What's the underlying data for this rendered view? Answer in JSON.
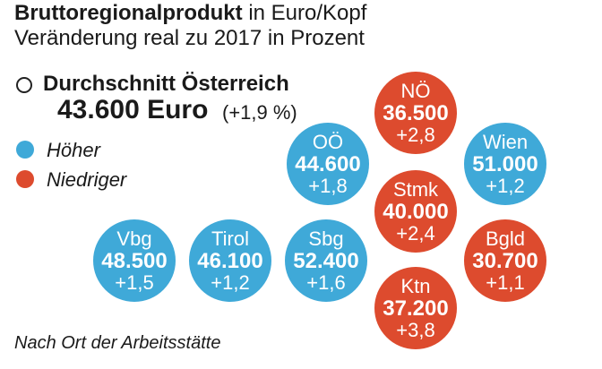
{
  "title": {
    "bold": "Bruttoregionalprodukt",
    "rest": " in Euro/Kopf",
    "subtitle": "Veränderung real zu 2017 in Prozent"
  },
  "average": {
    "label": "Durchschnitt Österreich",
    "value": "43.600 Euro",
    "change": "(+1,9 %)"
  },
  "legend": {
    "higher": "Höher",
    "lower": "Niedriger"
  },
  "colors": {
    "higher": "#3fa9d8",
    "lower": "#dd4b2e"
  },
  "footnote": "Nach Ort der Arbeitsstätte",
  "chart_data": {
    "type": "bubble-grid",
    "series": [
      {
        "region": "Vbg",
        "value": "48.500",
        "change": "+1,5",
        "category": "higher"
      },
      {
        "region": "Tirol",
        "value": "46.100",
        "change": "+1,2",
        "category": "higher"
      },
      {
        "region": "Sbg",
        "value": "52.400",
        "change": "+1,6",
        "category": "higher"
      },
      {
        "region": "OÖ",
        "value": "44.600",
        "change": "+1,8",
        "category": "higher"
      },
      {
        "region": "NÖ",
        "value": "36.500",
        "change": "+2,8",
        "category": "lower"
      },
      {
        "region": "Wien",
        "value": "51.000",
        "change": "+1,2",
        "category": "higher"
      },
      {
        "region": "Stmk",
        "value": "40.000",
        "change": "+2,4",
        "category": "lower"
      },
      {
        "region": "Bgld",
        "value": "30.700",
        "change": "+1,1",
        "category": "lower"
      },
      {
        "region": "Ktn",
        "value": "37.200",
        "change": "+3,8",
        "category": "lower"
      }
    ]
  }
}
